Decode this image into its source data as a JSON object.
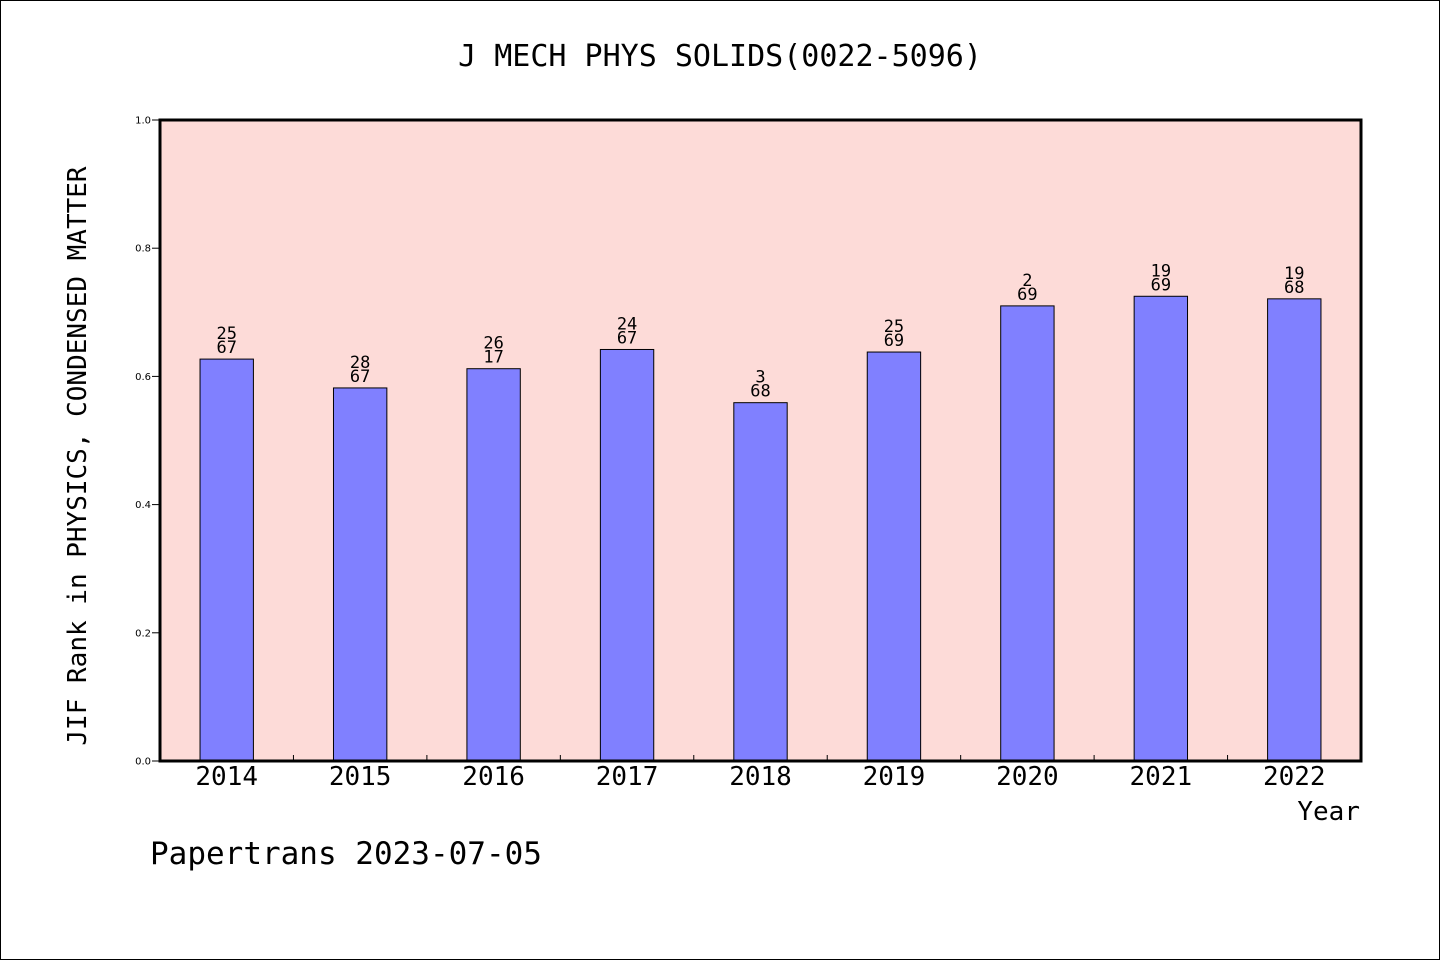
{
  "chart_data": {
    "type": "bar",
    "title": "J MECH PHYS SOLIDS(0022-5096)",
    "xlabel": "Year",
    "ylabel": "JIF Rank in PHYSICS, CONDENSED MATTER",
    "categories": [
      "2014",
      "2015",
      "2016",
      "2017",
      "2018",
      "2019",
      "2020",
      "2021",
      "2022"
    ],
    "values": [
      0.627,
      0.582,
      0.612,
      0.642,
      0.559,
      0.638,
      0.71,
      0.725,
      0.721
    ],
    "bar_labels": [
      [
        "25",
        "67"
      ],
      [
        "28",
        "67"
      ],
      [
        "26",
        "17"
      ],
      [
        "24",
        "67"
      ],
      [
        "3",
        "68"
      ],
      [
        "25",
        "69"
      ],
      [
        "2",
        "69"
      ],
      [
        "19",
        "69"
      ],
      [
        "19",
        "68"
      ]
    ],
    "ylim": [
      0,
      1.0
    ],
    "yticks": [
      "0.0",
      "0.2",
      "0.4",
      "0.6",
      "0.8",
      "1.0"
    ],
    "grid": false,
    "colors": {
      "plot_background": "#fddbd8",
      "bar_fill": "#8080ff",
      "bar_stroke": "#000000"
    }
  },
  "footer": {
    "text": "Papertrans 2023-07-05"
  }
}
